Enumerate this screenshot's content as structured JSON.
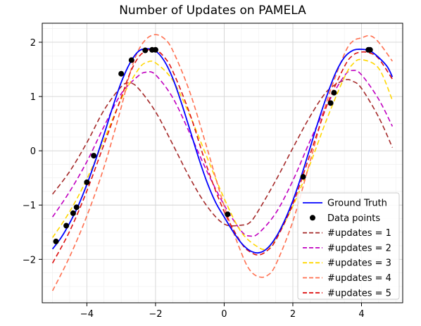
{
  "chart_data": {
    "type": "line",
    "title": "Number of Updates on PAMELA",
    "xlabel": "",
    "ylabel": "",
    "xlim": [
      -5.3,
      5.2
    ],
    "ylim": [
      -2.8,
      2.35
    ],
    "xticks": [
      -4,
      -2,
      0,
      2,
      4
    ],
    "xtick_labels": [
      "−4",
      "−2",
      "0",
      "2",
      "4"
    ],
    "yticks": [
      -2,
      -1,
      0,
      1,
      2
    ],
    "ytick_labels": [
      "−2",
      "−1",
      "0",
      "1",
      "2"
    ],
    "grid": true,
    "legend_position": "lower-right",
    "series": [
      {
        "name": "Ground Truth",
        "style": "solid",
        "color": "#0000ff",
        "x": [
          -5.0,
          -4.75,
          -4.5,
          -4.25,
          -4.0,
          -3.75,
          -3.5,
          -3.25,
          -3.0,
          -2.75,
          -2.5,
          -2.25,
          -2.0,
          -1.75,
          -1.5,
          -1.25,
          -1.0,
          -0.75,
          -0.5,
          -0.25,
          0.0,
          0.25,
          0.5,
          0.75,
          1.0,
          1.25,
          1.5,
          1.75,
          2.0,
          2.25,
          2.5,
          2.75,
          3.0,
          3.25,
          3.5,
          3.75,
          4.0,
          4.25,
          4.5,
          4.75,
          4.9
        ],
        "y": [
          -1.81,
          -1.6,
          -1.33,
          -1.01,
          -0.62,
          -0.18,
          0.3,
          0.8,
          1.26,
          1.61,
          1.83,
          1.88,
          1.84,
          1.66,
          1.34,
          0.89,
          0.39,
          -0.12,
          -0.58,
          -0.95,
          -1.22,
          -1.48,
          -1.7,
          -1.84,
          -1.88,
          -1.8,
          -1.6,
          -1.3,
          -0.92,
          -0.46,
          0.05,
          0.56,
          1.03,
          1.44,
          1.72,
          1.85,
          1.87,
          1.84,
          1.72,
          1.55,
          1.36
        ]
      },
      {
        "name": "#updates = 1",
        "style": "dashed",
        "color": "#a52a2a",
        "x": [
          -5.0,
          -4.5,
          -4.0,
          -3.5,
          -3.0,
          -2.75,
          -2.5,
          -2.0,
          -1.5,
          -1.0,
          -0.5,
          0.0,
          0.5,
          0.75,
          1.0,
          1.5,
          2.0,
          2.5,
          3.0,
          3.5,
          3.75,
          4.0,
          4.5,
          4.9
        ],
        "y": [
          -0.8,
          -0.38,
          0.15,
          0.75,
          1.18,
          1.25,
          1.15,
          0.72,
          0.12,
          -0.5,
          -1.02,
          -1.35,
          -1.37,
          -1.32,
          -1.1,
          -0.55,
          0.05,
          0.63,
          1.1,
          1.3,
          1.28,
          1.15,
          0.62,
          0.06
        ]
      },
      {
        "name": "#updates = 2",
        "style": "dashed",
        "color": "#c000c0",
        "x": [
          -5.0,
          -4.5,
          -4.0,
          -3.5,
          -3.0,
          -2.5,
          -2.25,
          -2.0,
          -1.5,
          -1.0,
          -0.5,
          0.0,
          0.5,
          0.75,
          1.0,
          1.5,
          2.0,
          2.5,
          3.0,
          3.5,
          3.75,
          4.0,
          4.5,
          4.9
        ],
        "y": [
          -1.22,
          -0.75,
          -0.2,
          0.45,
          1.05,
          1.38,
          1.45,
          1.4,
          0.98,
          0.32,
          -0.38,
          -1.0,
          -1.48,
          -1.57,
          -1.52,
          -1.15,
          -0.55,
          0.18,
          0.85,
          1.38,
          1.48,
          1.4,
          0.95,
          0.45
        ]
      },
      {
        "name": "#updates = 3",
        "style": "dashed",
        "color": "#ffd700",
        "x": [
          -5.0,
          -4.5,
          -4.0,
          -3.5,
          -3.0,
          -2.5,
          -2.25,
          -2.0,
          -1.5,
          -1.0,
          -0.5,
          0.0,
          0.5,
          1.0,
          1.25,
          1.5,
          2.0,
          2.5,
          3.0,
          3.5,
          3.75,
          4.0,
          4.5,
          4.9
        ],
        "y": [
          -1.6,
          -1.12,
          -0.52,
          0.2,
          0.95,
          1.5,
          1.63,
          1.62,
          1.3,
          0.65,
          -0.12,
          -0.88,
          -1.5,
          -1.78,
          -1.8,
          -1.62,
          -1.02,
          -0.25,
          0.6,
          1.35,
          1.6,
          1.68,
          1.52,
          0.93
        ]
      },
      {
        "name": "#updates = 4",
        "style": "dashed",
        "color": "#ff7050",
        "x": [
          -5.0,
          -4.5,
          -4.0,
          -3.5,
          -3.0,
          -2.75,
          -2.5,
          -2.25,
          -2.0,
          -1.75,
          -1.5,
          -1.0,
          -0.5,
          0.0,
          0.5,
          0.75,
          1.0,
          1.25,
          1.5,
          2.0,
          2.5,
          3.0,
          3.5,
          3.75,
          4.0,
          4.25,
          4.5,
          4.9
        ],
        "y": [
          -2.58,
          -1.95,
          -1.2,
          -0.3,
          0.8,
          1.42,
          1.85,
          2.07,
          2.14,
          2.07,
          1.85,
          1.08,
          0.05,
          -1.02,
          -1.88,
          -2.2,
          -2.32,
          -2.3,
          -2.1,
          -1.3,
          -0.2,
          0.93,
          1.78,
          2.02,
          2.08,
          2.12,
          2.0,
          1.65
        ]
      },
      {
        "name": "#updates = 5",
        "style": "dashed",
        "color": "#dd1111",
        "x": [
          -5.0,
          -4.5,
          -4.0,
          -3.5,
          -3.0,
          -2.75,
          -2.5,
          -2.25,
          -2.0,
          -1.75,
          -1.5,
          -1.0,
          -0.5,
          0.0,
          0.5,
          0.75,
          1.0,
          1.25,
          1.5,
          2.0,
          2.5,
          3.0,
          3.5,
          3.75,
          4.0,
          4.25,
          4.5,
          4.9
        ],
        "y": [
          -2.07,
          -1.48,
          -0.74,
          0.12,
          0.98,
          1.42,
          1.72,
          1.85,
          1.86,
          1.73,
          1.47,
          0.68,
          -0.3,
          -1.12,
          -1.7,
          -1.86,
          -1.92,
          -1.84,
          -1.65,
          -0.98,
          -0.07,
          0.85,
          1.55,
          1.76,
          1.82,
          1.8,
          1.7,
          1.32
        ]
      }
    ],
    "points": {
      "name": "Data points",
      "color": "#000000",
      "x": [
        -4.9,
        -4.6,
        -4.4,
        -4.3,
        -4.0,
        -3.8,
        -3.0,
        -2.7,
        -2.3,
        -2.1,
        -2.0,
        0.1,
        2.3,
        3.1,
        3.2,
        4.2,
        4.25
      ],
      "y": [
        -1.67,
        -1.38,
        -1.15,
        -1.04,
        -0.58,
        -0.09,
        1.42,
        1.67,
        1.85,
        1.86,
        1.86,
        -1.17,
        -0.48,
        0.88,
        1.07,
        1.86,
        1.86
      ]
    }
  }
}
